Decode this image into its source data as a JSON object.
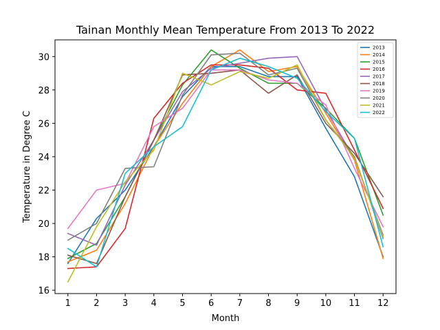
{
  "chart_data": {
    "type": "line",
    "title": "Tainan Monthly Mean Temperature From 2013 To 2022",
    "xlabel": "Month",
    "ylabel": "Temperature in Degree C",
    "x": [
      1,
      2,
      3,
      4,
      5,
      6,
      7,
      8,
      9,
      10,
      11,
      12
    ],
    "x_ticks": [
      "1",
      "2",
      "3",
      "4",
      "5",
      "6",
      "7",
      "8",
      "9",
      "10",
      "11",
      "12"
    ],
    "xlim": [
      0.55,
      12.45
    ],
    "ylim": [
      15.8,
      31.0
    ],
    "y_ticks": [
      "16",
      "18",
      "20",
      "22",
      "24",
      "26",
      "28",
      "30"
    ],
    "grid": false,
    "legend_position": "top-right",
    "series": [
      {
        "name": "2013",
        "color": "#1f77b4",
        "values": [
          17.6,
          20.3,
          22.0,
          24.6,
          27.6,
          29.4,
          29.4,
          28.8,
          28.8,
          25.7,
          22.8,
          18.0
        ]
      },
      {
        "name": "2014",
        "color": "#ff7f0e",
        "values": [
          17.7,
          18.4,
          21.2,
          24.6,
          27.2,
          29.4,
          30.4,
          29.1,
          29.4,
          26.6,
          23.8,
          17.9
        ]
      },
      {
        "name": "2015",
        "color": "#2ca02c",
        "values": [
          17.9,
          18.8,
          21.6,
          25.0,
          28.3,
          30.4,
          29.3,
          28.4,
          28.4,
          26.9,
          25.1,
          20.5
        ]
      },
      {
        "name": "2016",
        "color": "#d62728",
        "values": [
          17.3,
          17.4,
          19.7,
          26.3,
          28.4,
          29.5,
          29.5,
          29.3,
          28.0,
          27.8,
          24.4,
          20.9
        ]
      },
      {
        "name": "2017",
        "color": "#9467bd",
        "values": [
          19.4,
          18.7,
          22.3,
          25.0,
          27.9,
          29.3,
          29.6,
          29.9,
          30.0,
          26.8,
          23.9,
          19.3
        ]
      },
      {
        "name": "2018",
        "color": "#8c564b",
        "values": [
          18.1,
          17.6,
          21.6,
          25.0,
          28.9,
          29.0,
          29.2,
          27.8,
          28.9,
          26.0,
          24.2,
          21.6
        ]
      },
      {
        "name": "2019",
        "color": "#e377c2",
        "values": [
          19.7,
          22.0,
          22.4,
          25.8,
          26.9,
          29.2,
          29.2,
          28.6,
          28.4,
          27.1,
          23.3,
          19.8
        ]
      },
      {
        "name": "2020",
        "color": "#7f7f7f",
        "values": [
          19.0,
          20.0,
          23.3,
          23.4,
          27.7,
          30.1,
          30.2,
          28.9,
          29.3,
          26.2,
          24.0,
          19.1
        ]
      },
      {
        "name": "2021",
        "color": "#bcbd22",
        "values": [
          16.5,
          19.8,
          22.5,
          24.4,
          29.0,
          28.3,
          29.1,
          28.7,
          29.5,
          26.2,
          23.9,
          19.2
        ]
      },
      {
        "name": "2022",
        "color": "#17becf",
        "values": [
          18.5,
          17.4,
          23.0,
          24.6,
          25.8,
          29.2,
          29.9,
          29.4,
          28.7,
          26.7,
          25.1,
          18.6
        ]
      }
    ]
  }
}
